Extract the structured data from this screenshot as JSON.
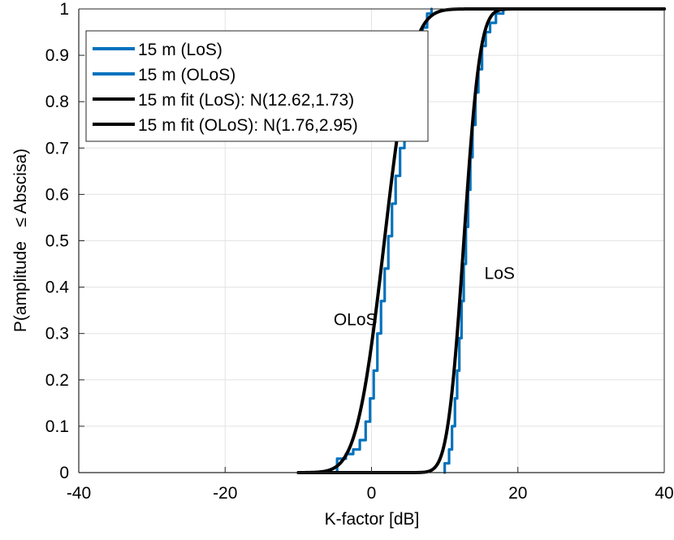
{
  "chart_data": {
    "type": "line",
    "title": "",
    "xlabel": "K-factor [dB]",
    "ylabel": "P(amplitude   ≤ Abscisa)",
    "xlim": [
      -40,
      40
    ],
    "ylim": [
      0,
      1
    ],
    "xticks": [
      -40,
      -20,
      0,
      20,
      40
    ],
    "xtick_labels": [
      "-40",
      "-20",
      "0",
      "20",
      "40"
    ],
    "yticks": [
      0,
      0.1,
      0.2,
      0.3,
      0.4,
      0.5,
      0.6,
      0.7,
      0.8,
      0.9,
      1
    ],
    "ytick_labels": [
      "0",
      "0.1",
      "0.2",
      "0.3",
      "0.4",
      "0.5",
      "0.6",
      "0.7",
      "0.8",
      "0.9",
      "1"
    ],
    "grid": true,
    "legend_position": "top-left",
    "series": [
      {
        "name": "15 m (LoS)",
        "kind": "empirical",
        "color": "#0072BD",
        "x": [
          10.0,
          10.0,
          10.6,
          11.0,
          11.4,
          11.7,
          12.0,
          12.3,
          12.6,
          12.9,
          13.2,
          13.5,
          13.8,
          14.2,
          14.6,
          15.1,
          15.6,
          16.2,
          17.0,
          18.0
        ],
        "y": [
          0.0,
          0.02,
          0.05,
          0.1,
          0.16,
          0.22,
          0.29,
          0.37,
          0.45,
          0.53,
          0.61,
          0.68,
          0.75,
          0.82,
          0.87,
          0.92,
          0.95,
          0.97,
          0.99,
          1.0
        ]
      },
      {
        "name": "15 m (OLoS)",
        "kind": "empirical",
        "color": "#0072BD",
        "x": [
          -5.0,
          -4.7,
          -4.2,
          -3.5,
          -2.5,
          -1.6,
          -0.8,
          -0.2,
          0.3,
          0.8,
          1.3,
          1.8,
          2.3,
          2.8,
          3.3,
          3.9,
          4.5,
          5.1,
          5.8,
          6.4,
          7.0,
          7.6,
          8.2
        ],
        "y": [
          0.0,
          0.03,
          0.03,
          0.04,
          0.05,
          0.07,
          0.11,
          0.16,
          0.22,
          0.3,
          0.37,
          0.44,
          0.51,
          0.58,
          0.64,
          0.7,
          0.76,
          0.82,
          0.87,
          0.92,
          0.96,
          0.99,
          1.0
        ]
      },
      {
        "name": "15 m fit (LoS): N(12.62,1.73)",
        "kind": "normal_cdf",
        "color": "#000000",
        "mean": 12.62,
        "std": 1.73,
        "x_range": [
          -10,
          40
        ]
      },
      {
        "name": "15 m fit (OLoS): N(1.76,2.95)",
        "kind": "normal_cdf",
        "color": "#000000",
        "mean": 1.76,
        "std": 2.95,
        "x_range": [
          -10,
          40
        ]
      }
    ],
    "annotations": [
      {
        "text": "LoS",
        "x": 17.5,
        "y": 0.43
      },
      {
        "text": "OLoS",
        "x": -2.2,
        "y": 0.33
      }
    ]
  }
}
